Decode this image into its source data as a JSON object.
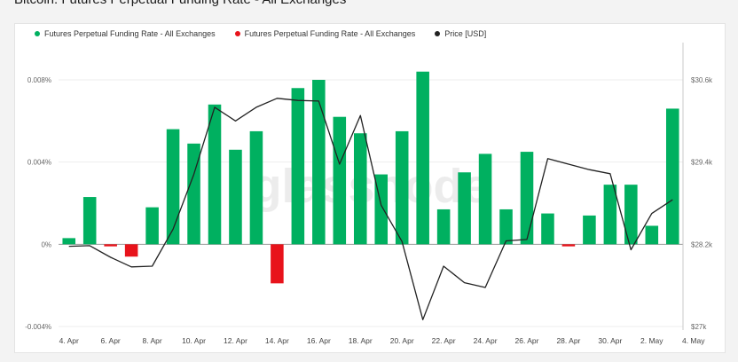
{
  "page": {
    "title": "Bitcoin: Futures Perpetual Funding Rate - All Exchanges"
  },
  "legend": [
    {
      "label": "Futures Perpetual Funding Rate - All Exchanges",
      "color": "#00b060"
    },
    {
      "label": "Futures Perpetual Funding Rate - All Exchanges",
      "color": "#e8131b"
    },
    {
      "label": "Price [USD]",
      "color": "#222222"
    }
  ],
  "watermark": "glassnode",
  "chart_data": {
    "type": "bar",
    "title": "Bitcoin: Futures Perpetual Funding Rate - All Exchanges",
    "x": [
      "2023-04-04",
      "2023-04-05",
      "2023-04-06",
      "2023-04-07",
      "2023-04-08",
      "2023-04-09",
      "2023-04-10",
      "2023-04-11",
      "2023-04-12",
      "2023-04-13",
      "2023-04-14",
      "2023-04-15",
      "2023-04-16",
      "2023-04-17",
      "2023-04-18",
      "2023-04-19",
      "2023-04-20",
      "2023-04-21",
      "2023-04-22",
      "2023-04-23",
      "2023-04-24",
      "2023-04-25",
      "2023-04-26",
      "2023-04-27",
      "2023-04-28",
      "2023-04-29",
      "2023-04-30",
      "2023-05-01",
      "2023-05-02",
      "2023-05-03"
    ],
    "x_tick_labels": [
      "4. Apr",
      "6. Apr",
      "8. Apr",
      "10. Apr",
      "12. Apr",
      "14. Apr",
      "16. Apr",
      "18. Apr",
      "20. Apr",
      "22. Apr",
      "24. Apr",
      "26. Apr",
      "28. Apr",
      "30. Apr",
      "2. May",
      "4. May"
    ],
    "series": [
      {
        "name": "Futures Perpetual Funding Rate - All Exchanges",
        "axis": "left",
        "type": "bar",
        "positive_color": "#00b060",
        "negative_color": "#e8131b",
        "values": [
          0.0003,
          0.0023,
          -0.0001,
          -0.0006,
          0.0018,
          0.0056,
          0.0049,
          0.0068,
          0.0046,
          0.0055,
          -0.0019,
          0.0076,
          0.008,
          0.0062,
          0.0054,
          0.0034,
          0.0055,
          0.0084,
          0.0017,
          0.0035,
          0.0044,
          0.0017,
          0.0045,
          0.0015,
          -0.0001,
          0.0014,
          0.0029,
          0.0029,
          0.0009,
          0.0066
        ]
      },
      {
        "name": "Price [USD]",
        "axis": "right",
        "type": "line",
        "color": "#222222",
        "values": [
          28170,
          28180,
          28010,
          27870,
          27880,
          28420,
          29220,
          30200,
          30000,
          30200,
          30330,
          30300,
          30290,
          29370,
          30080,
          28770,
          28240,
          27100,
          27880,
          27640,
          27570,
          28250,
          28270,
          29450,
          29370,
          29290,
          29230,
          28120,
          28650,
          28850
        ]
      }
    ],
    "y_left": {
      "ticks": [
        -0.004,
        0,
        0.004,
        0.008
      ],
      "tick_labels": [
        "-0.004%",
        "0%",
        "0.004%",
        "0.008%"
      ],
      "range": [
        -0.004,
        0.008
      ]
    },
    "y_right": {
      "ticks": [
        27000,
        28200,
        29400,
        30600
      ],
      "tick_labels": [
        "$27k",
        "$28.2k",
        "$29.4k",
        "$30.6k"
      ],
      "range": [
        27000,
        30600
      ]
    },
    "grid": "horizontal",
    "legend_position": "top-left"
  },
  "footer_marks": "-'     -'"
}
